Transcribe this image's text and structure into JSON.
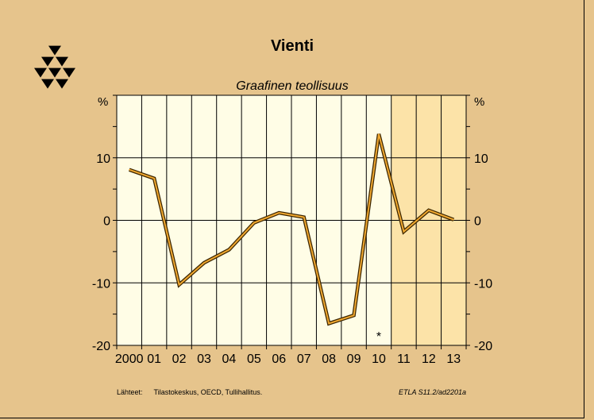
{
  "title": "Vienti",
  "subtitle": "Graafinen teollisuus",
  "unit_left": "%",
  "unit_right": "%",
  "source_label": "Lähteet:",
  "source_text": "Tilastokeskus, OECD, Tullihallitus.",
  "code": "ETLA S11.2/ad2201a",
  "marker": "*",
  "colors": {
    "background": "#e6c48c",
    "plot_actual": "#fffde6",
    "plot_forecast": "#fce3a8",
    "line_outer": "#3d2600",
    "line_inner": "#f0a830"
  },
  "chart_data": {
    "type": "line",
    "categories": [
      "2000",
      "01",
      "02",
      "03",
      "04",
      "05",
      "06",
      "07",
      "08",
      "09",
      "10",
      "11",
      "12",
      "13"
    ],
    "series": [
      {
        "values": [
          8.1,
          6.7,
          -10.3,
          -6.8,
          -4.7,
          -0.4,
          1.2,
          0.5,
          -16.5,
          -15.2,
          13.8,
          -1.8,
          1.6,
          0.1
        ]
      }
    ],
    "ylim": [
      -20,
      20
    ],
    "yticks": [
      -20,
      -10,
      0,
      10
    ],
    "ytick_labels": [
      "-20",
      "-10",
      "0",
      "10"
    ],
    "forecast_from": "11",
    "marker_at": "10",
    "grid": true
  }
}
